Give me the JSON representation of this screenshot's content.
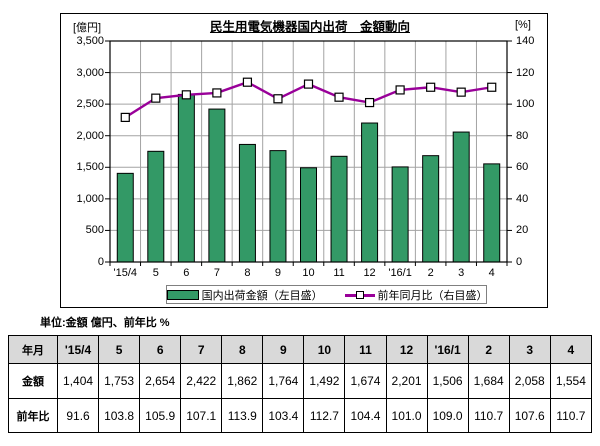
{
  "chart": {
    "unit_left": "[億円]",
    "unit_right": "[%]",
    "title": "民生用電気機器国内出荷　金額動向",
    "legend": [
      {
        "label": "国内出荷金額（左目盛）",
        "series": "bar",
        "color": "#339966"
      },
      {
        "label": "前年同月比（右目盛）",
        "series": "line",
        "color": "#990099"
      }
    ]
  },
  "chart_data": {
    "type": "combo",
    "title": "民生用電気機器国内出荷　金額動向",
    "categories": [
      "'15/4",
      "5",
      "6",
      "7",
      "8",
      "9",
      "10",
      "11",
      "12",
      "'16/1",
      "2",
      "3",
      "4"
    ],
    "series": [
      {
        "name": "国内出荷金額（左目盛）",
        "type": "bar",
        "axis": "left",
        "color": "#339966",
        "values": [
          1404,
          1753,
          2654,
          2422,
          1862,
          1764,
          1492,
          1674,
          2201,
          1506,
          1684,
          2058,
          1554
        ]
      },
      {
        "name": "前年同月比（右目盛）",
        "type": "line",
        "axis": "right",
        "color": "#990099",
        "marker": "white-square",
        "values": [
          91.6,
          103.8,
          105.9,
          107.1,
          113.9,
          103.4,
          112.7,
          104.4,
          101.0,
          109.0,
          110.7,
          107.6,
          110.7
        ]
      }
    ],
    "left_axis": {
      "label": "[億円]",
      "min": 0,
      "max": 3500,
      "step": 500,
      "ticks": [
        "0",
        "500",
        "1,000",
        "1,500",
        "2,000",
        "2,500",
        "3,000",
        "3,500"
      ]
    },
    "right_axis": {
      "label": "[%]",
      "min": 0,
      "max": 140,
      "step": 20,
      "ticks": [
        "0",
        "20",
        "40",
        "60",
        "80",
        "100",
        "120",
        "140"
      ]
    },
    "grid": true,
    "legend_position": "bottom"
  },
  "unit_note": "単位:金額 億円、前年比 %",
  "table": {
    "rows": [
      {
        "header": "年月",
        "cells": [
          "'15/4",
          "5",
          "6",
          "7",
          "8",
          "9",
          "10",
          "11",
          "12",
          "'16/1",
          "2",
          "3",
          "4"
        ]
      },
      {
        "header": "金額",
        "cells": [
          "1,404",
          "1,753",
          "2,654",
          "2,422",
          "1,862",
          "1,764",
          "1,492",
          "1,674",
          "2,201",
          "1,506",
          "1,684",
          "2,058",
          "1,554"
        ]
      },
      {
        "header": "前年比",
        "cells": [
          "91.6",
          "103.8",
          "105.9",
          "107.1",
          "113.9",
          "103.4",
          "112.7",
          "104.4",
          "101.0",
          "109.0",
          "110.7",
          "107.6",
          "110.7"
        ]
      }
    ]
  }
}
